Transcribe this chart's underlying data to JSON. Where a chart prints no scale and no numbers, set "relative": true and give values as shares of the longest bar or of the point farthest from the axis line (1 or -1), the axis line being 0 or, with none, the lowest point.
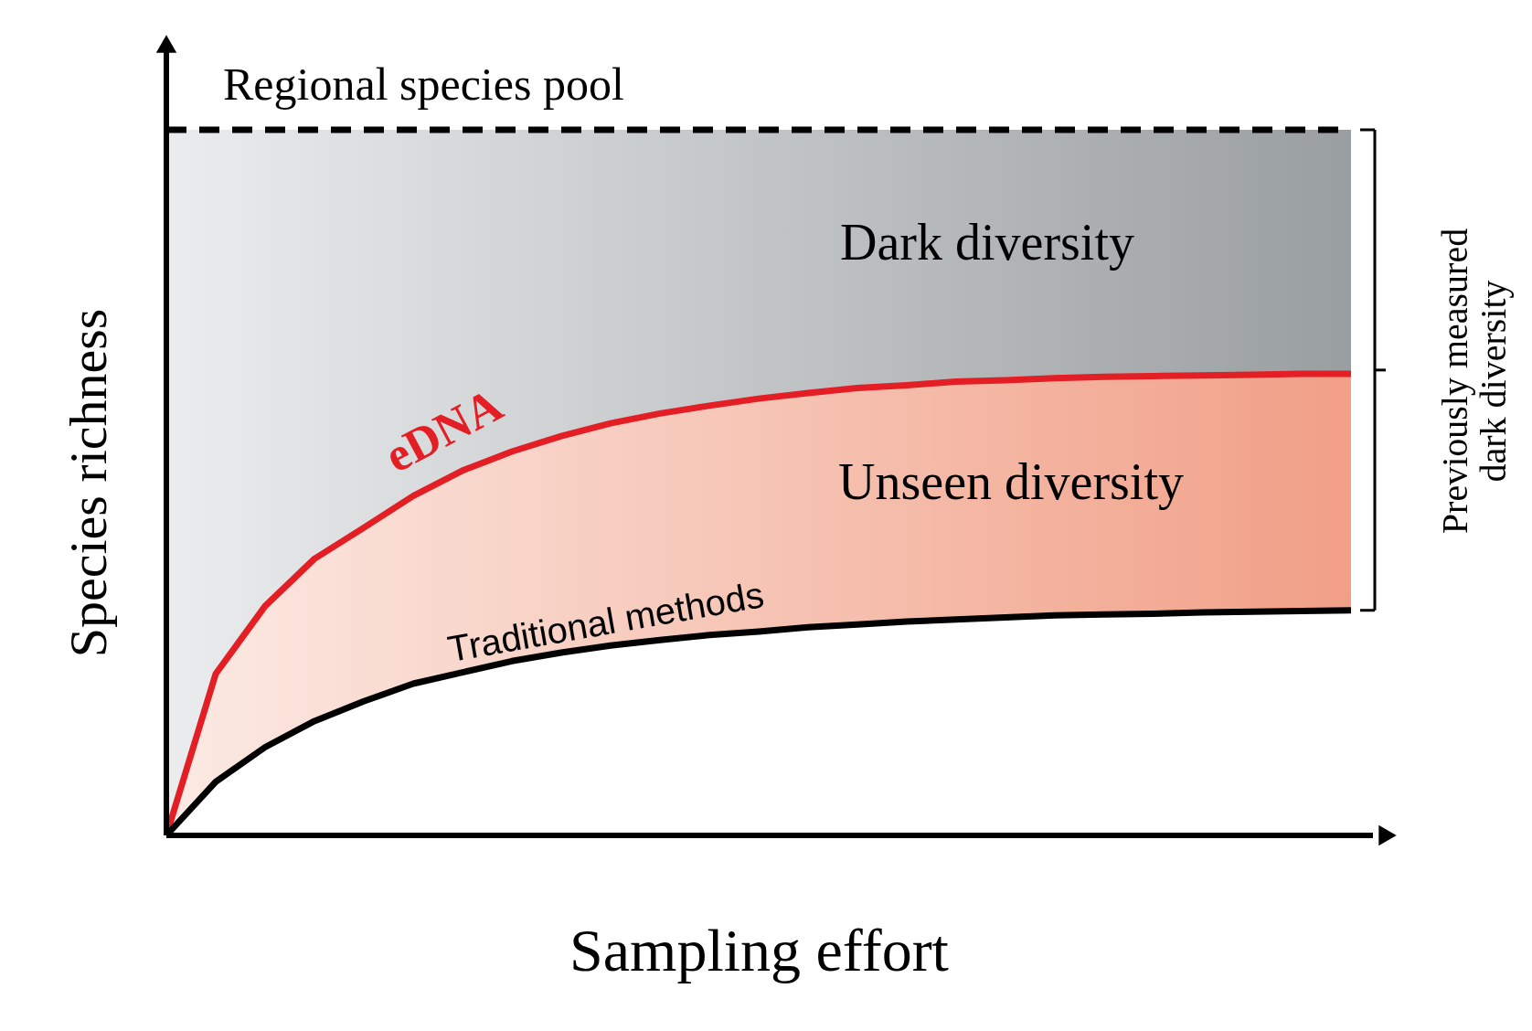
{
  "chart_data": {
    "type": "line",
    "relative": true,
    "xlabel": "Sampling effort",
    "ylabel": "Species richness",
    "legend": false,
    "grid": false,
    "tick_labels": false,
    "marker": "none",
    "categories": [
      null,
      null,
      null,
      null,
      null,
      null,
      null,
      null,
      null,
      null,
      null,
      null,
      null,
      null,
      null,
      null,
      null,
      null,
      null,
      null,
      null,
      null,
      null,
      null,
      null
    ],
    "series": [
      {
        "name": "Regional species pool",
        "color": "#000000",
        "line_style": "dashed",
        "values": [
          1,
          1,
          1,
          1,
          1,
          1,
          1,
          1,
          1,
          1,
          1,
          1,
          1,
          1,
          1,
          1,
          1,
          1,
          1,
          1,
          1,
          1,
          1,
          1,
          1
        ]
      },
      {
        "name": "eDNA",
        "color": "#e31e24",
        "line_style": "solid",
        "values": [
          0,
          0.229,
          0.325,
          0.392,
          0.436,
          0.481,
          0.517,
          0.544,
          0.566,
          0.584,
          0.598,
          0.609,
          0.619,
          0.627,
          0.634,
          0.638,
          0.643,
          0.645,
          0.648,
          0.65,
          0.651,
          0.652,
          0.653,
          0.654,
          0.654
        ],
        "lower": [
          0,
          0.076,
          0.125,
          0.162,
          0.19,
          0.215,
          0.231,
          0.247,
          0.259,
          0.269,
          0.277,
          0.284,
          0.289,
          0.295,
          0.299,
          0.303,
          0.306,
          0.309,
          0.312,
          0.313,
          0.314,
          0.316,
          0.317,
          0.318,
          0.319
        ],
        "upper": [
          1,
          1,
          1,
          1,
          1,
          1,
          1,
          1,
          1,
          1,
          1,
          1,
          1,
          1,
          1,
          1,
          1,
          1,
          1,
          1,
          1,
          1,
          1,
          1,
          1
        ]
      },
      {
        "name": "Traditional methods",
        "color": "#000000",
        "line_style": "solid",
        "values": [
          0,
          0.076,
          0.125,
          0.162,
          0.19,
          0.215,
          0.231,
          0.247,
          0.259,
          0.269,
          0.277,
          0.284,
          0.289,
          0.295,
          0.299,
          0.303,
          0.306,
          0.309,
          0.312,
          0.313,
          0.314,
          0.316,
          0.317,
          0.318,
          0.319
        ]
      }
    ],
    "annotations": [
      "Dark diversity",
      "Unseen diversity",
      "Previously measured dark diversity"
    ]
  }
}
